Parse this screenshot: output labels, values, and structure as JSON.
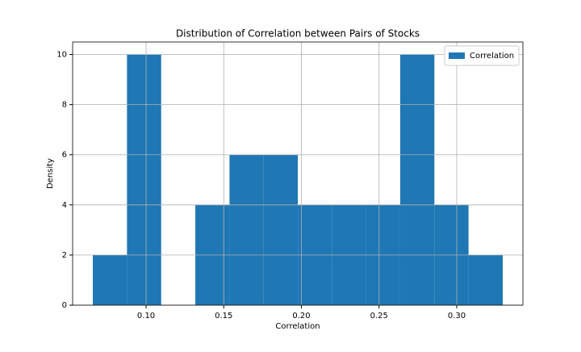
{
  "chart_data": {
    "type": "histogram",
    "title": "Distribution of Correlation between Pairs of Stocks",
    "xlabel": "Correlation",
    "ylabel": "Density",
    "bins": [
      0.0657,
      0.0877,
      0.1097,
      0.1317,
      0.1537,
      0.1757,
      0.1977,
      0.2196,
      0.2416,
      0.2636,
      0.2856,
      0.3076,
      0.3296
    ],
    "series": [
      {
        "name": "Correlation",
        "color": "#1f77b4",
        "values": [
          2,
          10,
          0,
          4,
          6,
          6,
          4,
          4,
          4,
          10,
          4,
          2
        ]
      }
    ],
    "xlim": [
      0.0527,
      0.3426
    ],
    "ylim": [
      0,
      10.5
    ],
    "xticks": [
      {
        "value": 0.1,
        "label": "0.10"
      },
      {
        "value": 0.15,
        "label": "0.15"
      },
      {
        "value": 0.2,
        "label": "0.20"
      },
      {
        "value": 0.25,
        "label": "0.25"
      },
      {
        "value": 0.3,
        "label": "0.30"
      }
    ],
    "yticks": [
      0,
      2,
      4,
      6,
      8,
      10
    ],
    "grid": true,
    "legend": "upper right"
  }
}
